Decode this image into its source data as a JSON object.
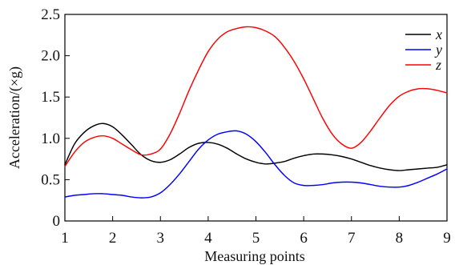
{
  "chart_data": {
    "type": "line",
    "title": "",
    "xlabel": "Measuring points",
    "ylabel": "Acceleration/(×g)",
    "xlim": [
      1,
      9
    ],
    "ylim": [
      0,
      2.5
    ],
    "x_ticks": [
      1,
      2,
      3,
      4,
      5,
      6,
      7,
      8,
      9
    ],
    "y_ticks": [
      "0",
      "0.5",
      "1.0",
      "1.5",
      "2.0",
      "2.5"
    ],
    "grid": false,
    "legend_position": "top-right",
    "series": [
      {
        "name": "x",
        "color": "#000000",
        "x": [
          1.0,
          1.2,
          1.4,
          1.6,
          1.8,
          2.0,
          2.2,
          2.4,
          2.6,
          2.8,
          3.0,
          3.2,
          3.4,
          3.6,
          3.8,
          4.0,
          4.2,
          4.4,
          4.6,
          4.8,
          5.0,
          5.2,
          5.4,
          5.6,
          5.8,
          6.0,
          6.2,
          6.4,
          6.6,
          6.8,
          7.0,
          7.2,
          7.4,
          7.6,
          7.8,
          8.0,
          8.2,
          8.4,
          8.6,
          8.8,
          9.0
        ],
        "values": [
          0.68,
          0.93,
          1.07,
          1.15,
          1.18,
          1.14,
          1.04,
          0.92,
          0.8,
          0.73,
          0.71,
          0.74,
          0.81,
          0.89,
          0.94,
          0.95,
          0.93,
          0.88,
          0.81,
          0.75,
          0.71,
          0.69,
          0.7,
          0.72,
          0.76,
          0.79,
          0.81,
          0.81,
          0.8,
          0.78,
          0.75,
          0.71,
          0.67,
          0.64,
          0.62,
          0.61,
          0.62,
          0.63,
          0.64,
          0.65,
          0.68
        ]
      },
      {
        "name": "y",
        "color": "#0000ff",
        "x": [
          1.0,
          1.2,
          1.4,
          1.6,
          1.8,
          2.0,
          2.2,
          2.4,
          2.6,
          2.8,
          3.0,
          3.2,
          3.4,
          3.6,
          3.8,
          4.0,
          4.2,
          4.4,
          4.6,
          4.8,
          5.0,
          5.2,
          5.4,
          5.6,
          5.8,
          6.0,
          6.2,
          6.4,
          6.6,
          6.8,
          7.0,
          7.2,
          7.4,
          7.6,
          7.8,
          8.0,
          8.2,
          8.4,
          8.6,
          8.8,
          9.0
        ],
        "values": [
          0.29,
          0.31,
          0.32,
          0.33,
          0.33,
          0.32,
          0.31,
          0.29,
          0.28,
          0.29,
          0.34,
          0.44,
          0.57,
          0.72,
          0.87,
          0.98,
          1.05,
          1.08,
          1.09,
          1.05,
          0.96,
          0.83,
          0.68,
          0.55,
          0.46,
          0.43,
          0.43,
          0.44,
          0.46,
          0.47,
          0.47,
          0.46,
          0.44,
          0.42,
          0.41,
          0.41,
          0.43,
          0.47,
          0.52,
          0.57,
          0.63
        ]
      },
      {
        "name": "z",
        "color": "#ff0000",
        "x": [
          1.0,
          1.2,
          1.4,
          1.6,
          1.8,
          2.0,
          2.2,
          2.4,
          2.6,
          2.8,
          3.0,
          3.2,
          3.4,
          3.6,
          3.8,
          4.0,
          4.2,
          4.4,
          4.6,
          4.8,
          5.0,
          5.2,
          5.4,
          5.6,
          5.8,
          6.0,
          6.2,
          6.4,
          6.6,
          6.8,
          7.0,
          7.2,
          7.4,
          7.6,
          7.8,
          8.0,
          8.2,
          8.4,
          8.6,
          8.8,
          9.0
        ],
        "values": [
          0.66,
          0.83,
          0.95,
          1.01,
          1.03,
          1.0,
          0.93,
          0.86,
          0.8,
          0.81,
          0.87,
          1.05,
          1.3,
          1.58,
          1.83,
          2.05,
          2.2,
          2.29,
          2.33,
          2.35,
          2.34,
          2.3,
          2.23,
          2.1,
          1.93,
          1.72,
          1.48,
          1.24,
          1.05,
          0.93,
          0.88,
          0.95,
          1.09,
          1.25,
          1.4,
          1.51,
          1.57,
          1.6,
          1.6,
          1.58,
          1.55
        ]
      }
    ]
  }
}
